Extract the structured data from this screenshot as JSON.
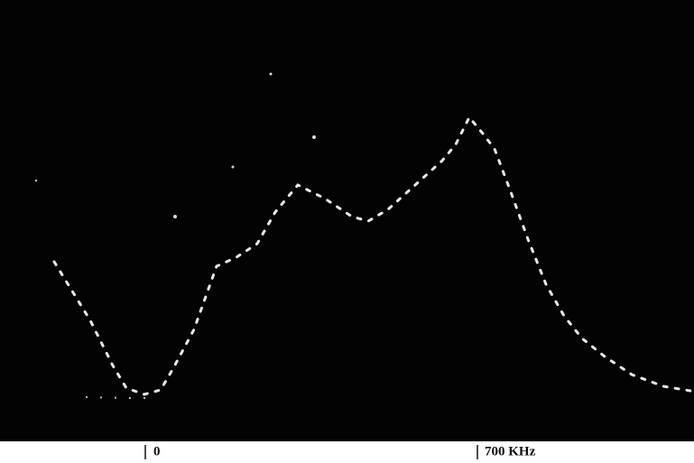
{
  "axis_labels": {
    "origin": "0",
    "end": "700 KHz"
  }
}
